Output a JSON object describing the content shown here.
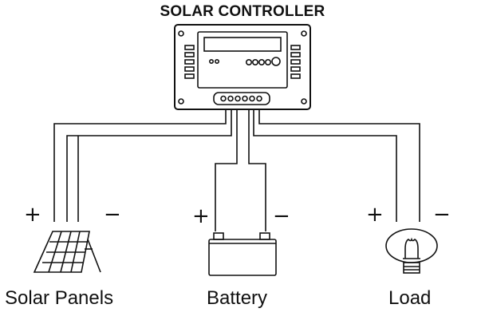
{
  "title": "SOLAR CONTROLLER",
  "components": {
    "solar": {
      "label": "Solar Panels",
      "plus": "+",
      "minus": "−"
    },
    "battery": {
      "label": "Battery",
      "plus": "+",
      "minus": "−"
    },
    "load": {
      "label": "Load",
      "plus": "+",
      "minus": "−"
    }
  }
}
